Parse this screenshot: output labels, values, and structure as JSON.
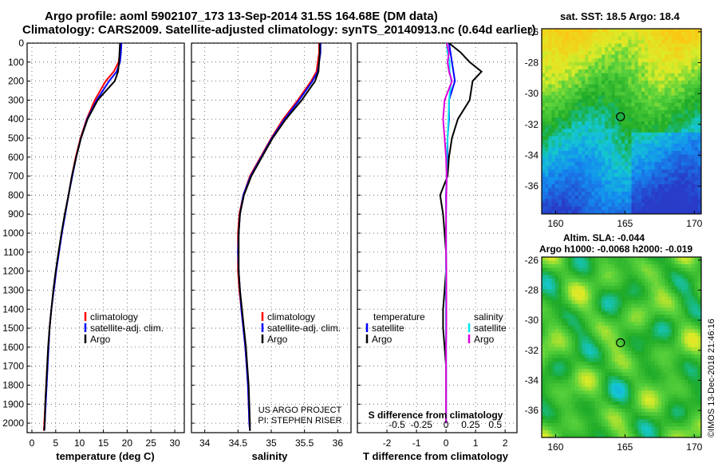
{
  "header": {
    "title_line1": "Argo profile: aoml 5902107_173 13-Sep-2014 31.5S 164.68E (DM data)",
    "title_line2": "Climatology: CARS2009. Satellite-adjusted climatology: synTS_20140913.nc (0.64d earlier)"
  },
  "colors": {
    "climatology": "#ff0000",
    "satellite": "#0000ff",
    "argo": "#000000",
    "salinity_satellite": "#00e5ee",
    "salinity_argo": "#dd00dd"
  },
  "depth_axis": {
    "ylim": [
      0,
      2050
    ],
    "ticks": [
      0,
      100,
      200,
      300,
      400,
      500,
      600,
      700,
      800,
      900,
      1000,
      1100,
      1200,
      1300,
      1400,
      1500,
      1600,
      1700,
      1800,
      1900,
      2000
    ]
  },
  "temperature_panel": {
    "xlabel": "temperature (deg C)",
    "xlim": [
      -1,
      32
    ],
    "xticks": [
      0,
      5,
      10,
      15,
      20,
      25,
      30
    ],
    "legend": [
      "climatology",
      "satellite-adj. clim.",
      "Argo"
    ]
  },
  "salinity_panel": {
    "xlabel": "salinity",
    "xlim": [
      33.8,
      36.2
    ],
    "xticks": [
      34,
      34.5,
      35,
      35.5,
      36
    ],
    "legend": [
      "climatology",
      "satellite-adj. clim.",
      "Argo"
    ],
    "project_line1": "US ARGO PROJECT",
    "project_line2": "PI: STEPHEN RISER"
  },
  "difference_panel": {
    "xlabel": "T difference from climatology",
    "top_xlabel": "S difference from climatology",
    "xlim": [
      -3,
      2.4
    ],
    "xticks": [
      -2,
      -1,
      0,
      1,
      2
    ],
    "top_ticks": [
      "-0.5",
      "-0.25",
      "0",
      "0.25",
      "0.5"
    ],
    "legend_temperature_title": "temperature",
    "legend_salinity_title": "salinity",
    "legend_temperature": [
      "satellite",
      "Argo"
    ],
    "legend_salinity": [
      "satellite",
      "Argo"
    ]
  },
  "chart_data": [
    {
      "type": "line",
      "title": "",
      "xlabel": "temperature (deg C)",
      "ylabel": "",
      "xlim": [
        -1,
        32
      ],
      "ylim": [
        0,
        2050
      ],
      "series": [
        {
          "name": "climatology",
          "x": [
            18.6,
            18.5,
            18.2,
            17.2,
            15.5,
            13.2,
            11.5,
            10.2,
            9.2,
            8.4,
            7.7,
            6.9,
            6.3,
            5.6,
            5.1,
            4.6,
            4.1,
            3.7,
            3.5,
            3.2,
            3.0,
            2.8,
            2.6,
            2.5
          ],
          "y": [
            0,
            50,
            100,
            150,
            200,
            300,
            400,
            500,
            600,
            700,
            800,
            900,
            1000,
            1100,
            1200,
            1300,
            1400,
            1500,
            1600,
            1700,
            1800,
            1900,
            2000,
            2040
          ]
        },
        {
          "name": "satellite-adj. clim.",
          "x": [
            18.8,
            18.7,
            18.5,
            17.8,
            16.2,
            13.6,
            11.6,
            10.3,
            9.3,
            8.5,
            7.7,
            7.0,
            6.3,
            5.7,
            5.1,
            4.6,
            4.1,
            3.7,
            3.5,
            3.3,
            3.1,
            2.9,
            2.7,
            2.6
          ],
          "y": [
            0,
            50,
            100,
            150,
            200,
            300,
            400,
            500,
            600,
            700,
            800,
            900,
            1000,
            1100,
            1200,
            1300,
            1400,
            1500,
            1600,
            1700,
            1800,
            1900,
            2000,
            2040
          ]
        },
        {
          "name": "Argo",
          "x": [
            18.5,
            18.4,
            18.3,
            18.1,
            17.4,
            13.8,
            11.7,
            10.3,
            9.3,
            8.4,
            7.7,
            6.9,
            6.2,
            5.6,
            5.0,
            4.5,
            4.1,
            3.7,
            3.4,
            3.2,
            3.0,
            2.8,
            2.7,
            2.6
          ],
          "y": [
            0,
            50,
            100,
            150,
            200,
            300,
            400,
            500,
            600,
            700,
            800,
            900,
            1000,
            1100,
            1200,
            1300,
            1400,
            1500,
            1600,
            1700,
            1800,
            1900,
            2000,
            2040
          ]
        }
      ]
    },
    {
      "type": "line",
      "title": "",
      "xlabel": "salinity",
      "ylabel": "",
      "xlim": [
        33.8,
        36.2
      ],
      "ylim": [
        0,
        2050
      ],
      "series": [
        {
          "name": "climatology",
          "x": [
            35.72,
            35.72,
            35.7,
            35.68,
            35.6,
            35.4,
            35.18,
            35.0,
            34.84,
            34.68,
            34.58,
            34.52,
            34.5,
            34.5,
            34.5,
            34.52,
            34.55,
            34.58,
            34.61,
            34.63,
            34.65,
            34.66,
            34.67,
            34.68
          ],
          "y": [
            0,
            50,
            100,
            150,
            200,
            300,
            400,
            500,
            600,
            700,
            800,
            900,
            1000,
            1100,
            1200,
            1300,
            1400,
            1500,
            1600,
            1700,
            1800,
            1900,
            2000,
            2040
          ]
        },
        {
          "name": "satellite-adj. clim.",
          "x": [
            35.74,
            35.74,
            35.72,
            35.7,
            35.62,
            35.42,
            35.2,
            35.01,
            34.85,
            34.69,
            34.58,
            34.53,
            34.51,
            34.5,
            34.51,
            34.53,
            34.55,
            34.58,
            34.61,
            34.63,
            34.65,
            34.66,
            34.67,
            34.68
          ],
          "y": [
            0,
            50,
            100,
            150,
            200,
            300,
            400,
            500,
            600,
            700,
            800,
            900,
            1000,
            1100,
            1200,
            1300,
            1400,
            1500,
            1600,
            1700,
            1800,
            1900,
            2000,
            2040
          ]
        },
        {
          "name": "Argo",
          "x": [
            35.73,
            35.73,
            35.72,
            35.71,
            35.66,
            35.46,
            35.22,
            35.02,
            34.86,
            34.7,
            34.59,
            34.53,
            34.51,
            34.51,
            34.51,
            34.53,
            34.56,
            34.59,
            34.62,
            34.64,
            34.66,
            34.67,
            34.68,
            34.68
          ],
          "y": [
            0,
            50,
            100,
            150,
            200,
            300,
            400,
            500,
            600,
            700,
            800,
            900,
            1000,
            1100,
            1200,
            1300,
            1400,
            1500,
            1600,
            1700,
            1800,
            1900,
            2000,
            2040
          ]
        }
      ]
    },
    {
      "type": "line",
      "title": "",
      "xlabel": "T difference from climatology",
      "ylabel": "",
      "xlim": [
        -3,
        2.4
      ],
      "ylim": [
        0,
        2050
      ],
      "series": [
        {
          "name": "temperature satellite",
          "x": [
            0.1,
            0.15,
            0.2,
            0.25,
            0.3,
            0.1,
            0.1,
            0.05,
            0.05,
            0.02,
            0,
            0,
            0,
            0,
            0,
            0,
            0,
            0,
            0,
            0,
            0,
            0,
            0
          ],
          "y": [
            0,
            50,
            100,
            150,
            200,
            300,
            400,
            500,
            600,
            700,
            800,
            900,
            1000,
            1100,
            1200,
            1300,
            1400,
            1500,
            1600,
            1700,
            1800,
            1900,
            2000
          ]
        },
        {
          "name": "temperature Argo",
          "x": [
            0.1,
            0.5,
            0.8,
            1.2,
            0.9,
            0.8,
            0.4,
            0.2,
            0.1,
            0.05,
            -0.2,
            -0.1,
            -0.05,
            0,
            0,
            -0.05,
            -0.1,
            -0.1,
            -0.05,
            0,
            0,
            0,
            0
          ],
          "y": [
            0,
            50,
            100,
            150,
            200,
            300,
            400,
            500,
            600,
            700,
            800,
            900,
            1000,
            1100,
            1200,
            1300,
            1400,
            1500,
            1600,
            1700,
            1800,
            1900,
            2000
          ]
        },
        {
          "name": "salinity satellite",
          "x": [
            0.02,
            0.05,
            0.12,
            0.12,
            0.18,
            0.1,
            0.08,
            0.05,
            0.03,
            0.02,
            0.01,
            0,
            0,
            0,
            0,
            0,
            0,
            0,
            0,
            0,
            0,
            0,
            0
          ],
          "y": [
            0,
            50,
            100,
            150,
            200,
            300,
            400,
            500,
            600,
            700,
            800,
            900,
            1000,
            1100,
            1200,
            1300,
            1400,
            1500,
            1600,
            1700,
            1800,
            1900,
            2000
          ]
        },
        {
          "name": "salinity Argo",
          "x": [
            0.02,
            0.1,
            0.05,
            0.1,
            0.2,
            -0.05,
            -0.1,
            -0.05,
            0,
            0.02,
            0.01,
            0,
            0,
            0,
            0.01,
            0.01,
            0.01,
            0.01,
            0,
            0,
            0,
            0,
            0
          ],
          "y": [
            0,
            50,
            100,
            150,
            200,
            300,
            400,
            500,
            600,
            700,
            800,
            900,
            1000,
            1100,
            1200,
            1300,
            1400,
            1500,
            1600,
            1700,
            1800,
            1900,
            2000
          ]
        }
      ]
    },
    {
      "type": "heatmap",
      "title": "sat. SST: 18.5 Argo: 18.4",
      "xlabel": "",
      "ylabel": "",
      "xlim": [
        159,
        170.5
      ],
      "ylim": [
        -37.8,
        -25.8
      ],
      "xticks": [
        160,
        165,
        170
      ],
      "yticks": [
        -26,
        -28,
        -30,
        -32,
        -34,
        -36
      ],
      "profile_location": [
        164.68,
        -31.5
      ]
    },
    {
      "type": "heatmap",
      "title": "Altim. SLA: -0.044",
      "subtitle": "Argo h1000: -0.0068 h2000: -0.019",
      "xlabel": "",
      "ylabel": "",
      "xlim": [
        159,
        170.5
      ],
      "ylim": [
        -37.8,
        -25.8
      ],
      "xticks": [
        160,
        165,
        170
      ],
      "yticks": [
        -26,
        -28,
        -30,
        -32,
        -34,
        -36
      ],
      "profile_location": [
        164.68,
        -31.5
      ]
    }
  ],
  "maps": {
    "sst_title": "sat. SST: 18.5 Argo: 18.4",
    "sla_title1": "Altim. SLA: -0.044",
    "sla_title2": "Argo h1000: -0.0068 h2000: -0.019"
  },
  "footer": {
    "credit": "©IMOS 13-Dec-2018 21:46:16"
  }
}
